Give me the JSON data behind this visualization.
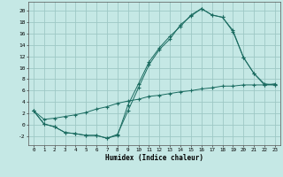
{
  "xlabel": "Humidex (Indice chaleur)",
  "background_color": "#c5e8e5",
  "grid_color": "#9ec8c5",
  "line_color": "#1a6b60",
  "xlim": [
    -0.5,
    23.5
  ],
  "ylim": [
    -3.5,
    21.5
  ],
  "xtick_labels": [
    "0",
    "1",
    "2",
    "3",
    "4",
    "5",
    "6",
    "7",
    "8",
    "9",
    "10",
    "11",
    "12",
    "13",
    "14",
    "15",
    "16",
    "17",
    "18",
    "19",
    "20",
    "21",
    "22",
    "23"
  ],
  "ytick_values": [
    -2,
    0,
    2,
    4,
    6,
    8,
    10,
    12,
    14,
    16,
    18,
    20
  ],
  "line1": {
    "x": [
      0,
      1,
      2,
      3,
      4,
      5,
      6,
      7,
      8,
      9,
      10,
      11,
      12,
      13,
      14,
      15,
      16,
      17,
      18,
      19,
      20,
      21,
      22,
      23
    ],
    "y": [
      2.5,
      0.2,
      -0.3,
      -1.3,
      -1.5,
      -1.8,
      -1.8,
      -2.3,
      -1.8,
      3.5,
      7.2,
      11.0,
      13.5,
      15.5,
      17.2,
      19.2,
      20.3,
      19.2,
      18.8,
      16.3,
      11.8,
      9.0,
      7.0,
      7.0
    ]
  },
  "line2": {
    "x": [
      0,
      1,
      2,
      3,
      4,
      5,
      6,
      7,
      8,
      9,
      10,
      11,
      12,
      13,
      14,
      15,
      16,
      17,
      18,
      19,
      20,
      21,
      22,
      23
    ],
    "y": [
      2.5,
      0.2,
      -0.3,
      -1.3,
      -1.5,
      -1.8,
      -1.8,
      -2.3,
      -1.6,
      2.5,
      6.5,
      10.5,
      13.2,
      15.0,
      17.5,
      19.0,
      20.3,
      19.2,
      18.8,
      16.5,
      11.8,
      9.0,
      7.2,
      7.0
    ]
  },
  "line3": {
    "x": [
      0,
      1,
      2,
      3,
      4,
      5,
      6,
      7,
      8,
      9,
      10,
      11,
      12,
      13,
      14,
      15,
      16,
      17,
      18,
      19,
      20,
      21,
      22,
      23
    ],
    "y": [
      2.5,
      1.0,
      1.2,
      1.5,
      1.8,
      2.2,
      2.8,
      3.2,
      3.8,
      4.2,
      4.5,
      5.0,
      5.2,
      5.5,
      5.8,
      6.0,
      6.3,
      6.5,
      6.8,
      6.8,
      7.0,
      7.0,
      7.0,
      7.2
    ]
  }
}
